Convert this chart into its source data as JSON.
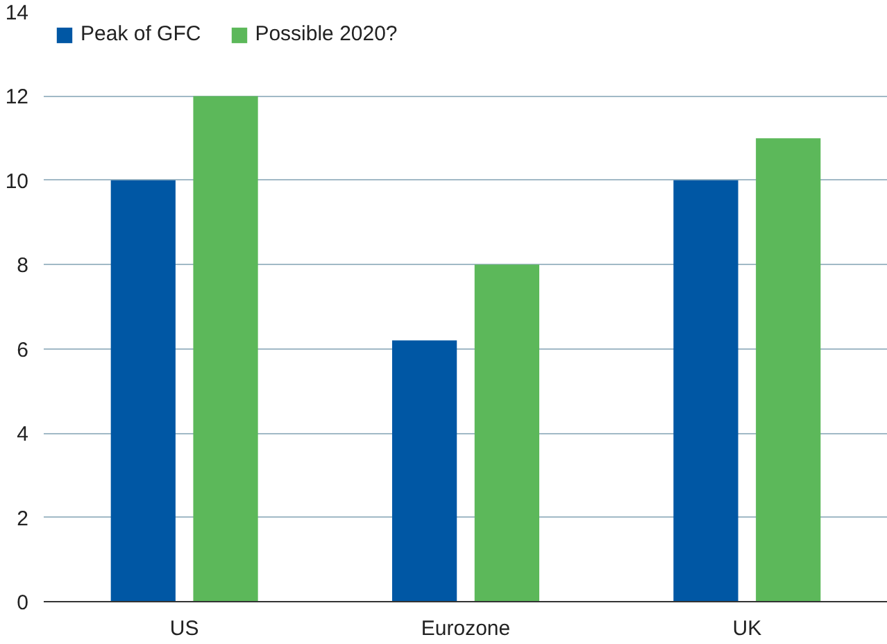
{
  "chart_data": {
    "type": "bar",
    "categories": [
      "US",
      "Eurozone",
      "UK"
    ],
    "series": [
      {
        "name": "Peak of GFC",
        "color": "#0057a4",
        "values": [
          10,
          6.2,
          10
        ]
      },
      {
        "name": "Possible 2020?",
        "color": "#5cb85a",
        "values": [
          12,
          8,
          11
        ]
      }
    ],
    "ylim": [
      0,
      14
    ],
    "yticks": [
      0,
      2,
      4,
      6,
      8,
      10,
      12,
      14
    ],
    "grid": "y",
    "legend": "top left"
  }
}
